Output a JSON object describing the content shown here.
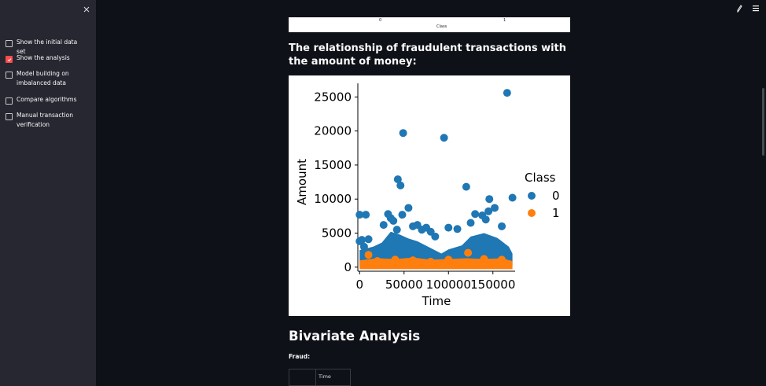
{
  "sidebar": {
    "close_icon": "close-icon",
    "options": [
      {
        "label": "Show the initial data set",
        "checked": false
      },
      {
        "label": "Show the analysis",
        "checked": true
      },
      {
        "label": "Model building on imbalanced data",
        "checked": false
      },
      {
        "label": "Compare algorithms",
        "checked": false
      },
      {
        "label": "Manual transaction verification",
        "checked": false
      }
    ]
  },
  "topbar": {
    "icons": [
      "pencil-icon",
      "hamburger-menu-icon"
    ]
  },
  "top_strip": {
    "tick_0": "0",
    "tick_1": "1",
    "xlabel": "Class"
  },
  "main": {
    "heading": "The relationship of fraudulent transactions with the amount of money:",
    "section_title": "Bivariate Analysis",
    "fraud_label": "Fraud:",
    "table_header": "Time"
  },
  "colors": {
    "accent": "#ff4b4b",
    "class0": "#1f77b4",
    "class1": "#ff7f0e",
    "background": "#0e1117",
    "sidebar": "#262730"
  },
  "chart_data": {
    "type": "scatter",
    "xlabel": "Time",
    "ylabel": "Amount",
    "xlim": [
      -2000,
      175000
    ],
    "ylim": [
      -600,
      27000
    ],
    "xticks": [
      "0",
      "50000",
      "100000",
      "150000"
    ],
    "xtick_values": [
      0,
      50000,
      100000,
      150000
    ],
    "yticks": [
      "0",
      "5000",
      "10000",
      "15000",
      "20000",
      "25000"
    ],
    "ytick_values": [
      0,
      5000,
      10000,
      15000,
      20000,
      25000
    ],
    "legend": {
      "title": "Class",
      "entries": [
        "0",
        "1"
      ],
      "placement": "right"
    },
    "series": [
      {
        "name": "0",
        "color": "#1f77b4",
        "points": [
          [
            0,
            3800
          ],
          [
            2500,
            4000
          ],
          [
            5000,
            3000
          ],
          [
            10000,
            4100
          ],
          [
            7000,
            7700
          ],
          [
            0,
            7700
          ],
          [
            27000,
            6200
          ],
          [
            32000,
            7800
          ],
          [
            35000,
            7200
          ],
          [
            38000,
            6800
          ],
          [
            42000,
            5500
          ],
          [
            43000,
            12900
          ],
          [
            46000,
            12000
          ],
          [
            48000,
            7700
          ],
          [
            49000,
            19700
          ],
          [
            55000,
            8700
          ],
          [
            60000,
            6000
          ],
          [
            65000,
            6200
          ],
          [
            70000,
            5500
          ],
          [
            75000,
            5800
          ],
          [
            80000,
            5200
          ],
          [
            85000,
            4500
          ],
          [
            95000,
            19000
          ],
          [
            100000,
            5800
          ],
          [
            110000,
            5600
          ],
          [
            120000,
            11800
          ],
          [
            125000,
            6500
          ],
          [
            130000,
            7800
          ],
          [
            138000,
            7600
          ],
          [
            142000,
            7000
          ],
          [
            145000,
            8200
          ],
          [
            146000,
            10000
          ],
          [
            152000,
            8700
          ],
          [
            160000,
            6000
          ],
          [
            166000,
            25600
          ],
          [
            172000,
            10200
          ]
        ]
      },
      {
        "name": "1",
        "color": "#ff7f0e",
        "points": [
          [
            10000,
            1800
          ],
          [
            20000,
            900
          ],
          [
            40000,
            1100
          ],
          [
            60000,
            1000
          ],
          [
            80000,
            800
          ],
          [
            100000,
            1100
          ],
          [
            122000,
            2100
          ],
          [
            140000,
            1200
          ],
          [
            160000,
            1100
          ]
        ]
      }
    ]
  }
}
